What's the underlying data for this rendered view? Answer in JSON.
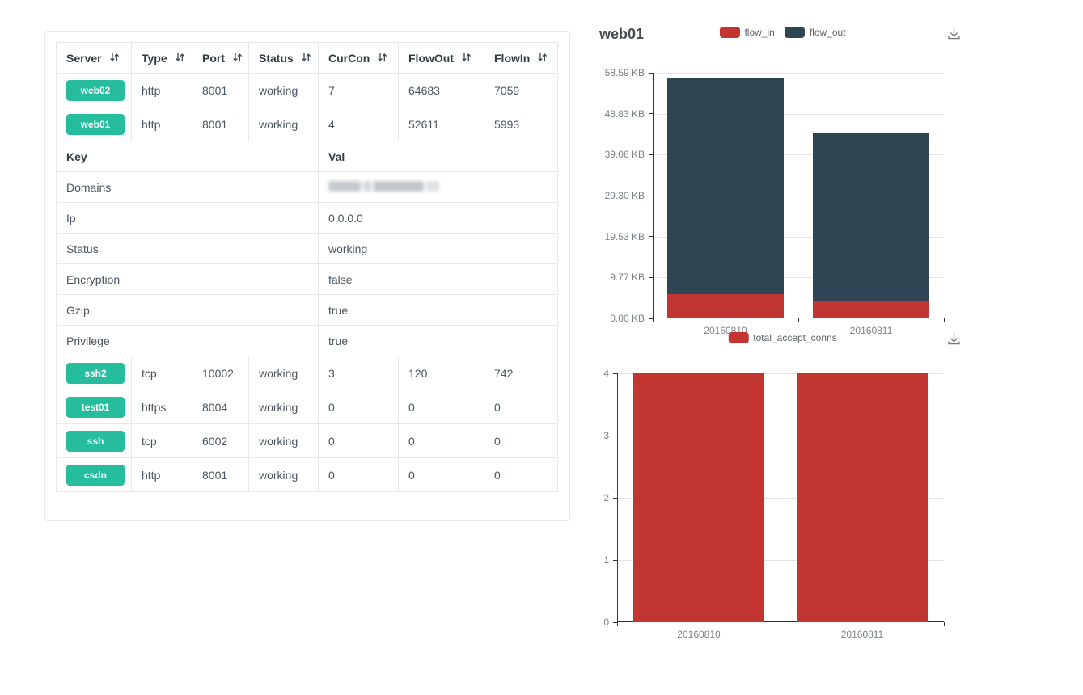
{
  "colors": {
    "badge_green": "#26bd9e",
    "flow_in_red": "#c23531",
    "flow_out_dark": "#2f4554",
    "header_text": "#2f3b45",
    "cell_text": "#4a5560",
    "table_border": "#e7eaec",
    "axis_label_gray": "#7b828a",
    "axis_line": "#333333",
    "gridline": "#e0e3e8"
  },
  "table": {
    "columns": [
      {
        "label": "Server",
        "sortable": true
      },
      {
        "label": "Type",
        "sortable": true
      },
      {
        "label": "Port",
        "sortable": true
      },
      {
        "label": "Status",
        "sortable": true
      },
      {
        "label": "CurCon",
        "sortable": true
      },
      {
        "label": "FlowOut",
        "sortable": true
      },
      {
        "label": "FlowIn",
        "sortable": true
      }
    ],
    "server_rows_top": [
      {
        "server": "web02",
        "type": "http",
        "port": "8001",
        "status": "working",
        "curcon": "7",
        "flowout": "64683",
        "flowin": "7059"
      },
      {
        "server": "web01",
        "type": "http",
        "port": "8001",
        "status": "working",
        "curcon": "4",
        "flowout": "52611",
        "flowin": "5993"
      }
    ],
    "kv_header": {
      "key": "Key",
      "val": "Val"
    },
    "kv_rows": [
      {
        "key": "Domains",
        "val": "",
        "redacted": true
      },
      {
        "key": "Ip",
        "val": "0.0.0.0"
      },
      {
        "key": "Status",
        "val": "working"
      },
      {
        "key": "Encryption",
        "val": "false"
      },
      {
        "key": "Gzip",
        "val": "true"
      },
      {
        "key": "Privilege",
        "val": "true"
      }
    ],
    "server_rows_bottom": [
      {
        "server": "ssh2",
        "type": "tcp",
        "port": "10002",
        "status": "working",
        "curcon": "3",
        "flowout": "120",
        "flowin": "742"
      },
      {
        "server": "test01",
        "type": "https",
        "port": "8004",
        "status": "working",
        "curcon": "0",
        "flowout": "0",
        "flowin": "0"
      },
      {
        "server": "ssh",
        "type": "tcp",
        "port": "6002",
        "status": "working",
        "curcon": "0",
        "flowout": "0",
        "flowin": "0"
      },
      {
        "server": "csdn",
        "type": "http",
        "port": "8001",
        "status": "working",
        "curcon": "0",
        "flowout": "0",
        "flowin": "0"
      }
    ]
  },
  "chart_data": [
    {
      "type": "bar",
      "stacked": true,
      "title": "web01",
      "categories": [
        "20160810",
        "20160811"
      ],
      "series": [
        {
          "name": "flow_in",
          "color": "#c23531",
          "values": [
            5.85,
            4.15
          ]
        },
        {
          "name": "flow_out",
          "color": "#2f4554",
          "values": [
            51.38,
            39.95
          ]
        }
      ],
      "unit": "KB",
      "xlabel": "",
      "ylabel": "",
      "ylim": [
        0,
        58.59
      ],
      "y_ticks": [
        "58.59 KB",
        "48.83 KB",
        "39.06 KB",
        "29.30 KB",
        "19.53 KB",
        "9.77 KB",
        "0.00 KB"
      ],
      "grid": true,
      "legend_position": "top-center",
      "toolbox": [
        "save-as-image"
      ]
    },
    {
      "type": "bar",
      "stacked": false,
      "title": "",
      "categories": [
        "20160810",
        "20160811"
      ],
      "series": [
        {
          "name": "total_accept_conns",
          "color": "#c23531",
          "values": [
            4,
            4
          ]
        }
      ],
      "unit": "",
      "xlabel": "",
      "ylabel": "",
      "ylim": [
        0,
        4
      ],
      "y_ticks": [
        "4",
        "3",
        "2",
        "1",
        "0"
      ],
      "grid": true,
      "legend_position": "top-center",
      "toolbox": [
        "save-as-image"
      ]
    }
  ]
}
